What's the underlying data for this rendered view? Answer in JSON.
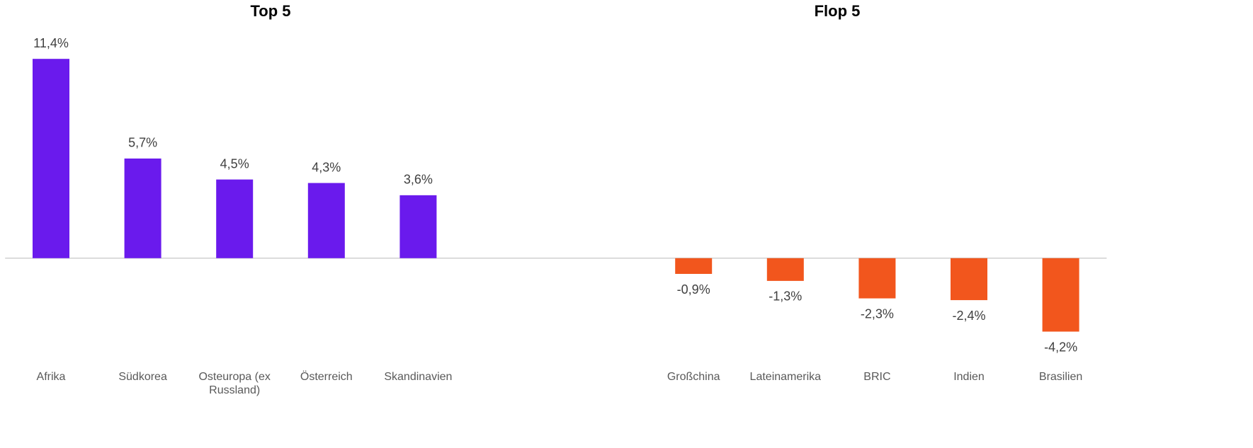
{
  "chart_data": {
    "type": "bar",
    "titles": [
      "Top 5",
      "Flop 5"
    ],
    "categories": [
      "Afrika",
      "Südkorea",
      "Osteuropa (ex Russland)",
      "Österreich",
      "Skandinavien",
      null,
      null,
      "Großchina",
      "Lateinamerika",
      "BRIC",
      "Indien",
      "Brasilien"
    ],
    "values": [
      11.4,
      5.7,
      4.5,
      4.3,
      3.6,
      null,
      null,
      -0.9,
      -1.3,
      -2.3,
      -2.4,
      -4.2
    ],
    "value_labels": [
      "11,4%",
      "5,7%",
      "4,5%",
      "4,3%",
      "3,6%",
      null,
      null,
      "-0,9%",
      "-1,3%",
      "-2,3%",
      "-2,4%",
      "-4,2%"
    ],
    "colors": [
      "#6a1aed",
      "#6a1aed",
      "#6a1aed",
      "#6a1aed",
      "#6a1aed",
      null,
      null,
      "#f2561d",
      "#f2561d",
      "#f2561d",
      "#f2561d",
      "#f2561d"
    ],
    "ylim": [
      -6,
      12.5
    ],
    "grid": false
  }
}
